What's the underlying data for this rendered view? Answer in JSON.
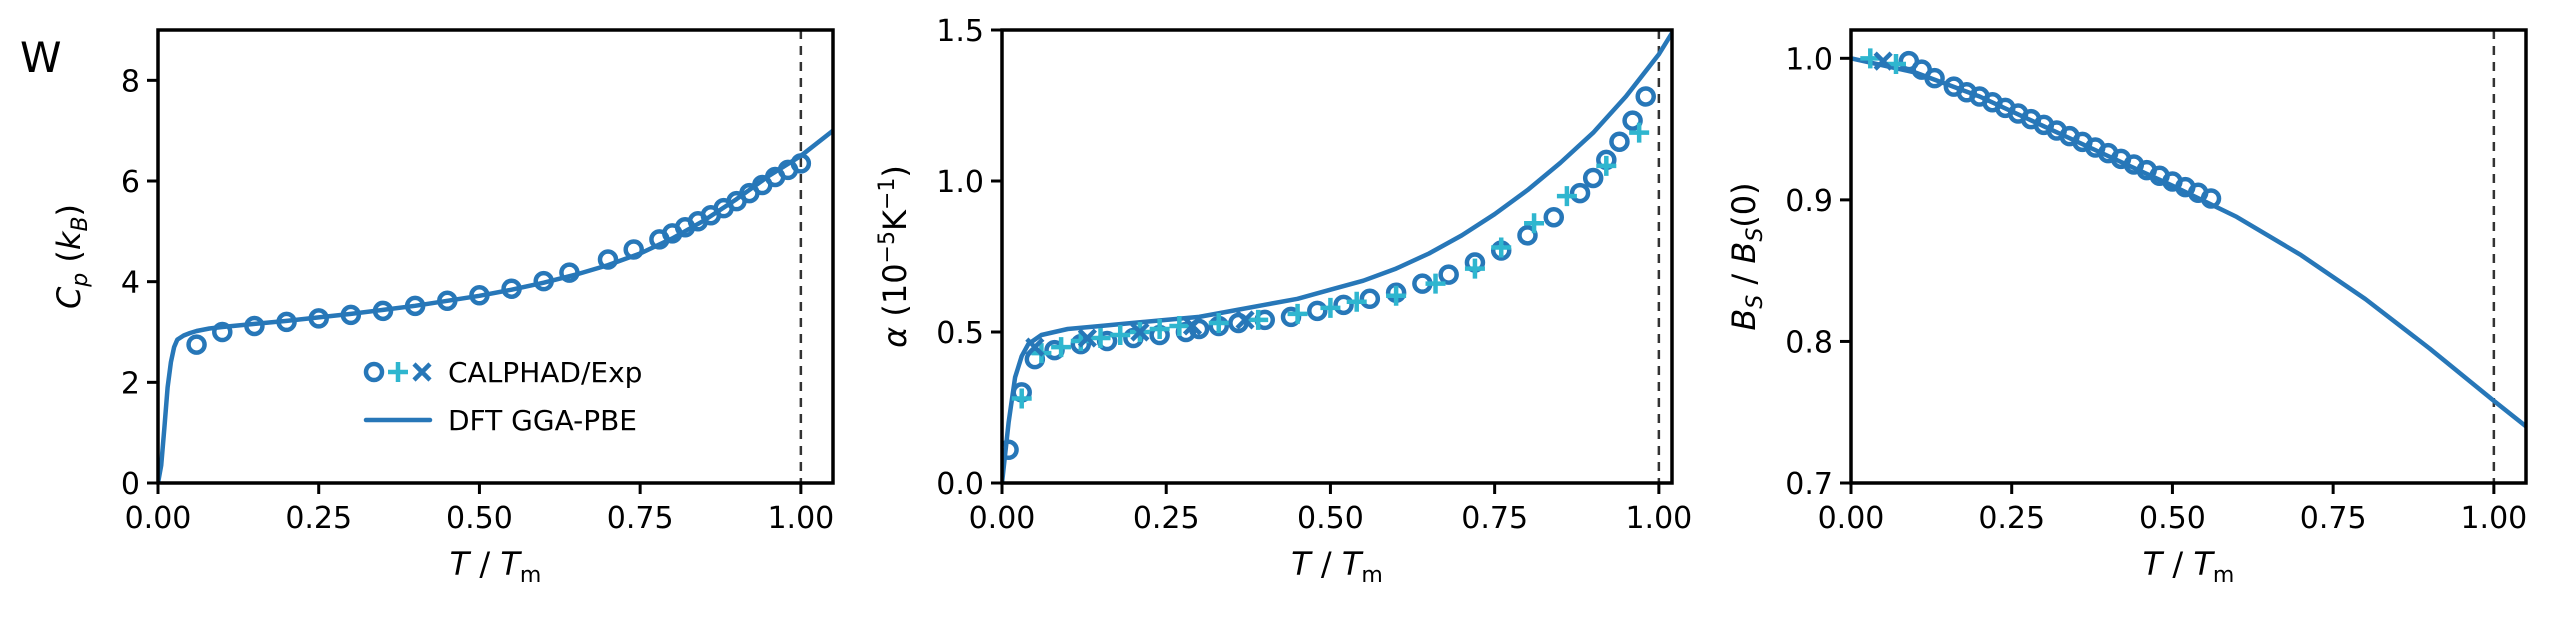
{
  "figure": {
    "panel_tag": "W",
    "colors": {
      "model": "#2777b8",
      "calphad": "#2777b8",
      "exp_plus": "#2fb6cf",
      "exp_cross": "#2777b8",
      "melt_line": "#333333"
    }
  },
  "legend": {
    "location": "center-right of panel 1",
    "markers_entry": "CALPHAD/Exp",
    "line_entry": "DFT GGA-PBE"
  },
  "chart_data": [
    {
      "type": "line",
      "panel": "Cp",
      "xlabel": "T / T_m",
      "ylabel": "C_p (k_B)",
      "xlim": [
        0,
        1.05
      ],
      "ylim": [
        0,
        9
      ],
      "xticks": [
        "0.00",
        "0.25",
        "0.50",
        "0.75",
        "1.00"
      ],
      "yticks": [
        "0",
        "2",
        "4",
        "6",
        "8"
      ],
      "melting_line_x": 1.0,
      "series": [
        {
          "name": "DFT GGA-PBE",
          "kind": "line",
          "x": [
            0.0,
            0.005,
            0.01,
            0.015,
            0.02,
            0.025,
            0.03,
            0.04,
            0.05,
            0.06,
            0.08,
            0.1,
            0.15,
            0.2,
            0.25,
            0.3,
            0.35,
            0.4,
            0.45,
            0.5,
            0.55,
            0.6,
            0.65,
            0.7,
            0.75,
            0.8,
            0.85,
            0.9,
            0.95,
            1.0,
            1.05
          ],
          "y": [
            0.0,
            0.35,
            1.1,
            1.9,
            2.4,
            2.7,
            2.85,
            2.93,
            2.98,
            3.02,
            3.07,
            3.1,
            3.16,
            3.22,
            3.29,
            3.36,
            3.44,
            3.52,
            3.62,
            3.72,
            3.84,
            3.98,
            4.14,
            4.33,
            4.56,
            4.86,
            5.22,
            5.64,
            6.1,
            6.5,
            7.0
          ]
        },
        {
          "name": "CALPHAD",
          "kind": "circle",
          "x": [
            0.06,
            0.1,
            0.15,
            0.2,
            0.25,
            0.3,
            0.35,
            0.4,
            0.45,
            0.5,
            0.55,
            0.6,
            0.64,
            0.7,
            0.74,
            0.78,
            0.8,
            0.82,
            0.84,
            0.86,
            0.88,
            0.9,
            0.92,
            0.94,
            0.96,
            0.98,
            1.0
          ],
          "y": [
            2.75,
            3.0,
            3.12,
            3.2,
            3.27,
            3.34,
            3.42,
            3.52,
            3.62,
            3.73,
            3.86,
            4.01,
            4.18,
            4.44,
            4.64,
            4.84,
            4.96,
            5.08,
            5.2,
            5.32,
            5.46,
            5.6,
            5.76,
            5.92,
            6.08,
            6.22,
            6.35
          ]
        }
      ]
    },
    {
      "type": "line",
      "panel": "alpha",
      "xlabel": "T / T_m",
      "ylabel": "α (10^-5 K^-1)",
      "xlim": [
        0,
        1.02
      ],
      "ylim": [
        0,
        1.5
      ],
      "xticks": [
        "0.00",
        "0.25",
        "0.50",
        "0.75",
        "1.00"
      ],
      "yticks": [
        "0.0",
        "0.5",
        "1.0",
        "1.5"
      ],
      "melting_line_x": 1.0,
      "series": [
        {
          "name": "DFT GGA-PBE",
          "kind": "line",
          "x": [
            0.0,
            0.01,
            0.02,
            0.03,
            0.04,
            0.06,
            0.08,
            0.1,
            0.15,
            0.2,
            0.25,
            0.3,
            0.35,
            0.4,
            0.45,
            0.5,
            0.55,
            0.6,
            0.65,
            0.7,
            0.75,
            0.8,
            0.85,
            0.9,
            0.95,
            1.0,
            1.02
          ],
          "y": [
            0.0,
            0.2,
            0.35,
            0.42,
            0.46,
            0.49,
            0.5,
            0.51,
            0.52,
            0.53,
            0.54,
            0.55,
            0.57,
            0.59,
            0.61,
            0.64,
            0.67,
            0.71,
            0.76,
            0.82,
            0.89,
            0.97,
            1.06,
            1.16,
            1.28,
            1.42,
            1.49
          ]
        },
        {
          "name": "CALPHAD",
          "kind": "circle",
          "x": [
            0.01,
            0.03,
            0.05,
            0.08,
            0.12,
            0.16,
            0.2,
            0.24,
            0.28,
            0.3,
            0.33,
            0.36,
            0.4,
            0.44,
            0.48,
            0.52,
            0.56,
            0.6,
            0.64,
            0.68,
            0.72,
            0.76,
            0.8,
            0.84,
            0.88,
            0.9,
            0.92,
            0.94,
            0.96,
            0.98
          ],
          "y": [
            0.11,
            0.3,
            0.41,
            0.44,
            0.46,
            0.47,
            0.48,
            0.49,
            0.5,
            0.51,
            0.52,
            0.53,
            0.54,
            0.55,
            0.57,
            0.59,
            0.61,
            0.63,
            0.66,
            0.69,
            0.73,
            0.77,
            0.82,
            0.88,
            0.96,
            1.01,
            1.07,
            1.13,
            1.2,
            1.28
          ]
        },
        {
          "name": "Exp",
          "kind": "plus",
          "x": [
            0.03,
            0.06,
            0.09,
            0.12,
            0.15,
            0.18,
            0.21,
            0.24,
            0.27,
            0.33,
            0.39,
            0.45,
            0.5,
            0.54,
            0.6,
            0.66,
            0.72,
            0.76,
            0.81,
            0.86,
            0.92,
            0.97
          ],
          "y": [
            0.28,
            0.43,
            0.45,
            0.47,
            0.48,
            0.49,
            0.5,
            0.51,
            0.52,
            0.53,
            0.54,
            0.56,
            0.58,
            0.6,
            0.62,
            0.66,
            0.71,
            0.78,
            0.86,
            0.95,
            1.05,
            1.16
          ]
        },
        {
          "name": "Exp",
          "kind": "cross",
          "x": [
            0.05,
            0.13,
            0.21,
            0.29,
            0.37
          ],
          "y": [
            0.45,
            0.48,
            0.5,
            0.52,
            0.54
          ]
        }
      ]
    },
    {
      "type": "line",
      "panel": "bulk_modulus",
      "xlabel": "T / T_m",
      "ylabel": "B_S / B_S(0)",
      "xlim": [
        0,
        1.05
      ],
      "ylim": [
        0.7,
        1.02
      ],
      "xticks": [
        "0.00",
        "0.25",
        "0.50",
        "0.75",
        "1.00"
      ],
      "yticks": [
        "0.7",
        "0.8",
        "0.9",
        "1.0"
      ],
      "melting_line_x": 1.0,
      "series": [
        {
          "name": "DFT GGA-PBE",
          "kind": "line",
          "x": [
            0.0,
            0.1,
            0.2,
            0.3,
            0.4,
            0.5,
            0.6,
            0.7,
            0.8,
            0.9,
            1.0,
            1.05
          ],
          "y": [
            1.0,
            0.99,
            0.973,
            0.952,
            0.931,
            0.91,
            0.888,
            0.861,
            0.83,
            0.795,
            0.758,
            0.74
          ]
        },
        {
          "name": "CALPHAD",
          "kind": "circle",
          "x": [
            0.09,
            0.11,
            0.13,
            0.16,
            0.18,
            0.2,
            0.22,
            0.24,
            0.26,
            0.28,
            0.3,
            0.32,
            0.34,
            0.36,
            0.38,
            0.4,
            0.42,
            0.44,
            0.46,
            0.48,
            0.5,
            0.52,
            0.54,
            0.56
          ],
          "y": [
            0.998,
            0.992,
            0.986,
            0.98,
            0.976,
            0.973,
            0.969,
            0.965,
            0.961,
            0.957,
            0.953,
            0.949,
            0.945,
            0.941,
            0.937,
            0.933,
            0.929,
            0.925,
            0.921,
            0.917,
            0.913,
            0.909,
            0.905,
            0.901
          ]
        },
        {
          "name": "Exp",
          "kind": "plus",
          "x": [
            0.03,
            0.07
          ],
          "y": [
            1.0,
            0.996
          ]
        },
        {
          "name": "Exp",
          "kind": "cross",
          "x": [
            0.05
          ],
          "y": [
            0.998
          ]
        }
      ]
    }
  ]
}
